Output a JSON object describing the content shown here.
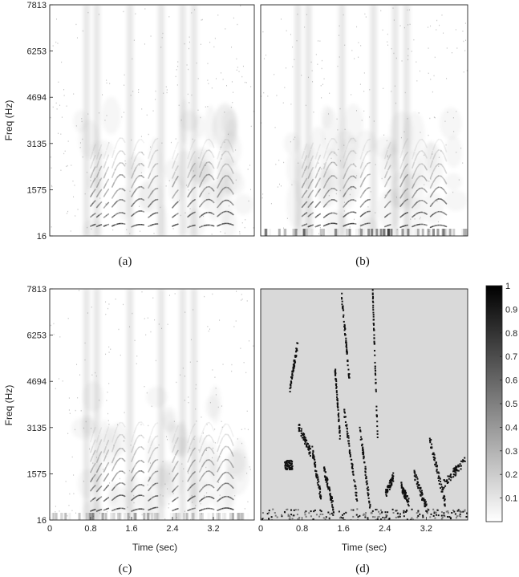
{
  "chart_data": [
    {
      "type": "heatmap",
      "panel": "a",
      "caption": "(a)",
      "ylabel": "Freq (Hz)",
      "xlabel": "",
      "yticks": [
        "16",
        "1575",
        "3135",
        "4694",
        "6253",
        "7813"
      ],
      "ytick_values": [
        16,
        1575,
        3135,
        4694,
        6253,
        7813
      ],
      "xticks": [],
      "ylim": [
        16,
        7813
      ],
      "xlim": [
        0,
        4.0
      ],
      "colormap": "gray-reversed",
      "background": "#ffffff"
    },
    {
      "type": "heatmap",
      "panel": "b",
      "caption": "(b)",
      "ylabel": "",
      "xlabel": "",
      "yticks": [],
      "xticks": [],
      "ylim": [
        16,
        7813
      ],
      "xlim": [
        0,
        4.0
      ],
      "colormap": "gray-reversed",
      "background": "#ffffff"
    },
    {
      "type": "heatmap",
      "panel": "c",
      "caption": "(c)",
      "ylabel": "Freq (Hz)",
      "xlabel": "Time (sec)",
      "yticks": [
        "16",
        "1575",
        "3135",
        "4694",
        "6253",
        "7813"
      ],
      "ytick_values": [
        16,
        1575,
        3135,
        4694,
        6253,
        7813
      ],
      "xticks": [
        "0",
        "0.8",
        "1.6",
        "2.4",
        "3.2"
      ],
      "xtick_values": [
        0,
        0.8,
        1.6,
        2.4,
        3.2
      ],
      "ylim": [
        16,
        7813
      ],
      "xlim": [
        0,
        4.0
      ],
      "colormap": "gray-reversed",
      "background": "#ffffff"
    },
    {
      "type": "heatmap",
      "panel": "d",
      "caption": "(d)",
      "ylabel": "",
      "xlabel": "Time (sec)",
      "yticks": [],
      "xticks": [
        "0",
        "0.8",
        "1.6",
        "2.4",
        "3.2"
      ],
      "xtick_values": [
        0,
        0.8,
        1.6,
        2.4,
        3.2
      ],
      "ylim": [
        16,
        7813
      ],
      "xlim": [
        0,
        4.0
      ],
      "colormap": "gray-reversed",
      "background": "#d9d9d9",
      "colorbar": {
        "ticks": [
          "0.1",
          "0.2",
          "0.3",
          "0.4",
          "0.5",
          "0.6",
          "0.7",
          "0.8",
          "0.9",
          "1"
        ],
        "tick_values": [
          0.1,
          0.2,
          0.3,
          0.4,
          0.5,
          0.6,
          0.7,
          0.8,
          0.9,
          1.0
        ],
        "range": [
          0,
          1
        ]
      }
    }
  ],
  "colors": {
    "ink": "#222222",
    "mask_background": "#d9d9d9",
    "dark_mark": "#111111"
  }
}
